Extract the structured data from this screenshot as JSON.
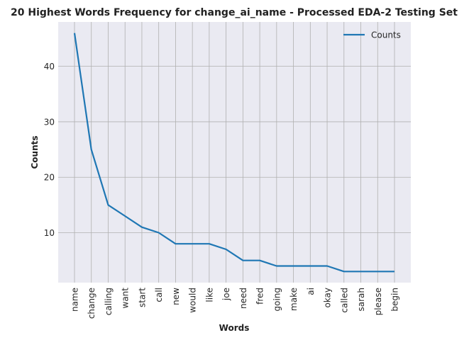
{
  "chart_data": {
    "type": "line",
    "title": "20 Highest Words Frequency for change_ai_name - Processed EDA-2 Testing Set",
    "xlabel": "Words",
    "ylabel": "Counts",
    "categories": [
      "name",
      "change",
      "calling",
      "want",
      "start",
      "call",
      "new",
      "would",
      "like",
      "joe",
      "need",
      "fred",
      "going",
      "make",
      "ai",
      "okay",
      "called",
      "sarah",
      "please",
      "begin"
    ],
    "series": [
      {
        "name": "Counts",
        "values": [
          46,
          25,
          15,
          13,
          11,
          10,
          8,
          8,
          8,
          7,
          5,
          5,
          4,
          4,
          4,
          4,
          3,
          3,
          3,
          3
        ]
      }
    ],
    "ylim": [
      1,
      48
    ],
    "yticks": [
      10,
      20,
      30,
      40
    ],
    "grid": true,
    "legend": "top-right",
    "colors": {
      "line": "#1f77b4",
      "plot_bg": "#eaeaf2",
      "grid": "#b0b0b0"
    }
  }
}
